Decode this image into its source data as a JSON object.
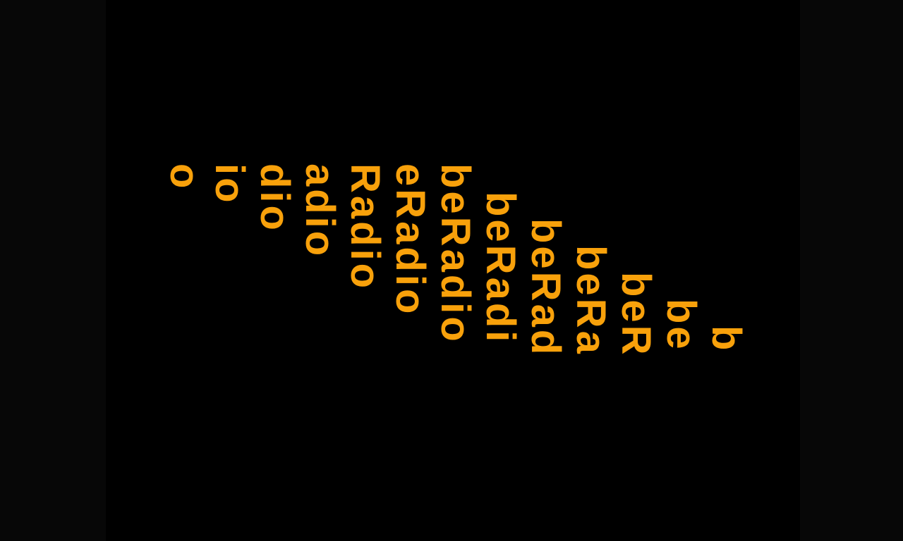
{
  "logo": {
    "text": "beRadio",
    "color": "#f8a10b",
    "frames": [
      "b",
      "be",
      "beR",
      "beRa",
      "beRad",
      "beRadi",
      "beRadio",
      "eRadio",
      "Radio",
      "adio",
      "dio",
      "io",
      "o"
    ]
  }
}
